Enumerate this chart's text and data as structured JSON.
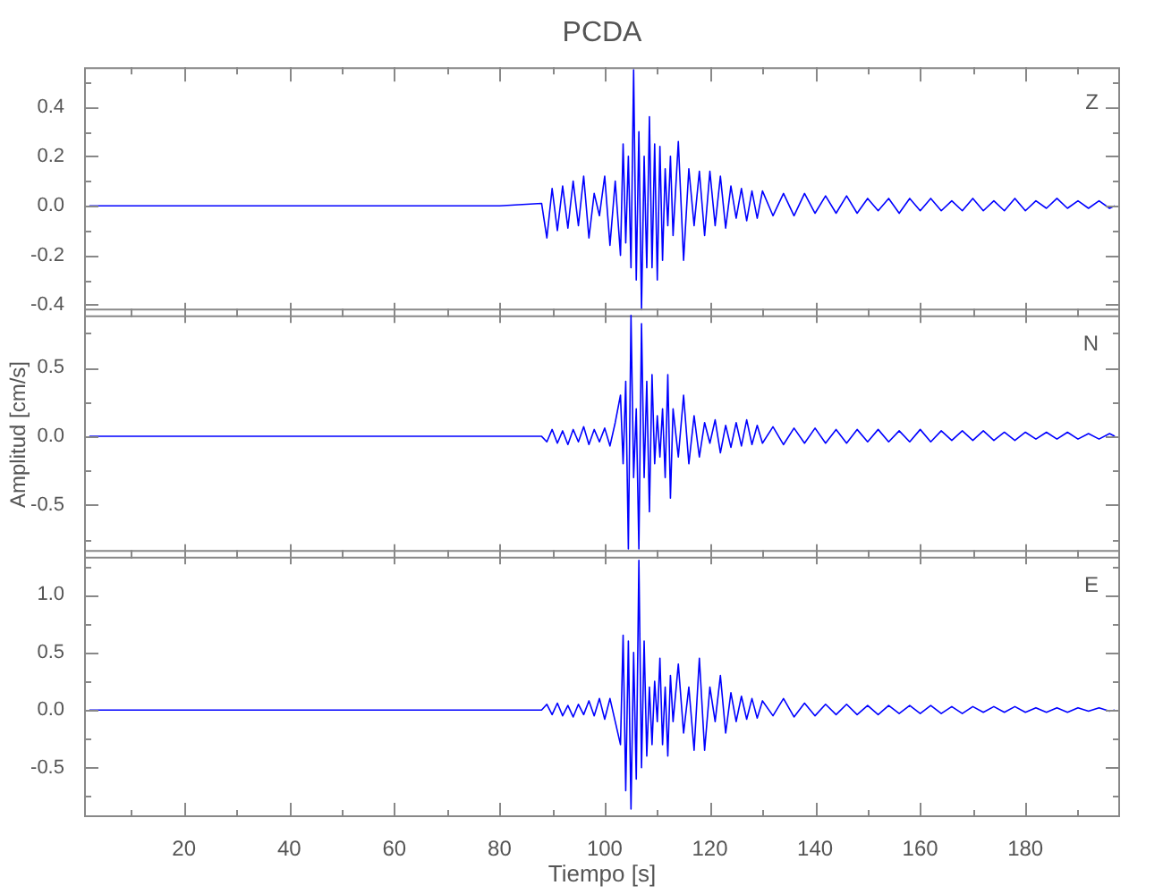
{
  "chart_data": [
    {
      "type": "line",
      "title": "PCDA",
      "annotations": [
        "Z"
      ],
      "tick_labels": "y",
      "color": "#0000ff",
      "marker": "none",
      "line_style": "solid",
      "grid": false,
      "xlim": [
        1,
        198
      ],
      "xticks": [
        {
          "value": 10,
          "label": null
        },
        20,
        {
          "value": 30,
          "label": null
        },
        40,
        {
          "value": 50,
          "label": null
        },
        60,
        {
          "value": 70,
          "label": null
        },
        80,
        {
          "value": 90,
          "label": null
        },
        100,
        {
          "value": 110,
          "label": null
        },
        120,
        {
          "value": 130,
          "label": null
        },
        140,
        {
          "value": 150,
          "label": null
        },
        160,
        {
          "value": 170,
          "label": null
        },
        180,
        {
          "value": 190,
          "label": null
        }
      ],
      "ylim": [
        -0.45,
        0.56
      ],
      "yticks": [
        -0.4,
        {
          "value": -0.3,
          "label": null
        },
        -0.2,
        {
          "value": -0.1,
          "label": null
        },
        {
          "value": 0,
          "label": "0.0"
        },
        {
          "value": 0.1,
          "label": null
        },
        0.2,
        {
          "value": 0.3,
          "label": null
        },
        0.4,
        {
          "value": 0.5,
          "label": null
        }
      ],
      "x": [
        2,
        10,
        20,
        30,
        40,
        50,
        60,
        70,
        80,
        88,
        89,
        90,
        91,
        92,
        93,
        94,
        95,
        96,
        97,
        98,
        99,
        100,
        101,
        102,
        103,
        103.5,
        104,
        104.5,
        105,
        105.5,
        106,
        106.5,
        107,
        107.5,
        108,
        108.5,
        109,
        109.5,
        110,
        110.5,
        111,
        111.5,
        112,
        112.5,
        113,
        114,
        115,
        116,
        117,
        118,
        119,
        120,
        121,
        122,
        123,
        124,
        125,
        126,
        127,
        128,
        129,
        130,
        132,
        134,
        136,
        138,
        140,
        142,
        144,
        146,
        148,
        150,
        152,
        154,
        156,
        158,
        160,
        162,
        164,
        166,
        168,
        170,
        172,
        174,
        176,
        178,
        180,
        182,
        184,
        186,
        188,
        190,
        192,
        194,
        196,
        197
      ],
      "values": [
        0,
        0,
        0,
        0,
        0,
        0,
        0,
        0,
        0,
        0.01,
        -0.13,
        0.07,
        -0.1,
        0.08,
        -0.09,
        0.1,
        -0.08,
        0.12,
        -0.13,
        0.05,
        -0.04,
        0.12,
        -0.16,
        0.1,
        -0.2,
        0.25,
        -0.15,
        0.2,
        -0.25,
        0.55,
        -0.3,
        0.3,
        -0.42,
        0.2,
        -0.25,
        0.36,
        -0.25,
        0.25,
        -0.3,
        0.24,
        -0.22,
        0.15,
        -0.08,
        0.2,
        -0.12,
        0.26,
        -0.22,
        0.15,
        -0.08,
        0.14,
        -0.12,
        0.14,
        -0.08,
        0.12,
        -0.09,
        0.08,
        -0.05,
        0.07,
        -0.06,
        0.06,
        -0.05,
        0.06,
        -0.04,
        0.05,
        -0.04,
        0.05,
        -0.03,
        0.04,
        -0.03,
        0.04,
        -0.03,
        0.03,
        -0.02,
        0.03,
        -0.03,
        0.03,
        -0.02,
        0.03,
        -0.02,
        0.02,
        -0.02,
        0.03,
        -0.02,
        0.02,
        -0.02,
        0.03,
        -0.02,
        0.02,
        -0.01,
        0.03,
        -0.01,
        0.02,
        -0.01,
        0.02,
        -0.01,
        0
      ]
    },
    {
      "type": "line",
      "ylabel": "Amplitud [cm/s]",
      "annotations": [
        "N"
      ],
      "tick_labels": "y",
      "color": "#0000ff",
      "marker": "none",
      "line_style": "solid",
      "grid": false,
      "xlim": [
        1,
        198
      ],
      "xticks": [
        {
          "value": 10,
          "label": null
        },
        20,
        {
          "value": 30,
          "label": null
        },
        40,
        {
          "value": 50,
          "label": null
        },
        60,
        {
          "value": 70,
          "label": null
        },
        80,
        {
          "value": 90,
          "label": null
        },
        100,
        {
          "value": 110,
          "label": null
        },
        120,
        {
          "value": 130,
          "label": null
        },
        140,
        {
          "value": 150,
          "label": null
        },
        160,
        {
          "value": 170,
          "label": null
        },
        180,
        {
          "value": 190,
          "label": null
        }
      ],
      "ylim": [
        -0.89,
        0.93
      ],
      "yticks": [
        {
          "value": -0.75,
          "label": null
        },
        -0.5,
        {
          "value": -0.25,
          "label": null
        },
        {
          "value": 0,
          "label": "0.0"
        },
        {
          "value": 0.25,
          "label": null
        },
        0.5,
        {
          "value": 0.75,
          "label": null
        }
      ],
      "x": [
        2,
        10,
        20,
        30,
        40,
        50,
        60,
        70,
        80,
        88,
        89,
        90,
        91,
        92,
        93,
        94,
        95,
        96,
        97,
        98,
        99,
        100,
        101,
        102,
        103,
        103.5,
        104,
        104.5,
        105,
        105.5,
        106,
        106.5,
        107,
        107.5,
        108,
        108.5,
        109,
        109.5,
        110,
        110.5,
        111,
        111.5,
        112,
        112.5,
        113,
        114,
        115,
        116,
        117,
        118,
        119,
        120,
        121,
        122,
        123,
        124,
        125,
        126,
        127,
        128,
        129,
        130,
        132,
        134,
        136,
        138,
        140,
        142,
        144,
        146,
        148,
        150,
        152,
        154,
        156,
        158,
        160,
        162,
        164,
        166,
        168,
        170,
        172,
        174,
        176,
        178,
        180,
        182,
        184,
        186,
        188,
        190,
        192,
        194,
        196,
        197
      ],
      "values": [
        0,
        0,
        0,
        0,
        0,
        0,
        0,
        0,
        0,
        0,
        -0.04,
        0.05,
        -0.05,
        0.04,
        -0.06,
        0.05,
        -0.04,
        0.07,
        -0.06,
        0.05,
        -0.04,
        0.06,
        -0.07,
        0.1,
        0.3,
        -0.2,
        0.4,
        -0.82,
        0.88,
        -0.3,
        0.2,
        -0.82,
        0.82,
        -0.3,
        0.4,
        -0.55,
        0.45,
        -0.2,
        0.15,
        -0.15,
        0.2,
        -0.3,
        0.45,
        -0.45,
        0.2,
        -0.15,
        0.3,
        -0.2,
        0.15,
        -0.15,
        0.1,
        -0.05,
        0.12,
        -0.12,
        0.08,
        -0.08,
        0.1,
        -0.07,
        0.12,
        -0.06,
        0.08,
        -0.05,
        0.07,
        -0.06,
        0.06,
        -0.05,
        0.06,
        -0.05,
        0.05,
        -0.05,
        0.05,
        -0.04,
        0.05,
        -0.04,
        0.04,
        -0.04,
        0.05,
        -0.04,
        0.04,
        -0.03,
        0.04,
        -0.03,
        0.04,
        -0.03,
        0.03,
        -0.03,
        0.03,
        -0.02,
        0.03,
        -0.02,
        0.03,
        -0.02,
        0.02,
        -0.02,
        0.02,
        0
      ]
    },
    {
      "type": "line",
      "xlabel": "Tiempo [s]",
      "annotations": [
        "E"
      ],
      "color": "#0000ff",
      "marker": "none",
      "line_style": "solid",
      "grid": false,
      "xlim": [
        1,
        198
      ],
      "xticks": [
        {
          "value": 10,
          "label": null
        },
        20,
        {
          "value": 30,
          "label": null
        },
        40,
        {
          "value": 50,
          "label": null
        },
        60,
        {
          "value": 70,
          "label": null
        },
        80,
        {
          "value": 90,
          "label": null
        },
        100,
        {
          "value": 110,
          "label": null
        },
        120,
        {
          "value": 130,
          "label": null
        },
        140,
        {
          "value": 150,
          "label": null
        },
        160,
        {
          "value": 170,
          "label": null
        },
        180,
        {
          "value": 190,
          "label": null
        }
      ],
      "ylim": [
        -0.93,
        1.39
      ],
      "yticks": [
        {
          "value": -0.75,
          "label": null
        },
        -0.5,
        {
          "value": -0.25,
          "label": null
        },
        {
          "value": 0,
          "label": "0.0"
        },
        {
          "value": 0.25,
          "label": null
        },
        0.5,
        {
          "value": 0.75,
          "label": null
        },
        {
          "value": 1,
          "label": "1.0"
        },
        {
          "value": 1.25,
          "label": null
        }
      ],
      "x": [
        2,
        10,
        20,
        30,
        40,
        50,
        60,
        70,
        80,
        88,
        89,
        90,
        91,
        92,
        93,
        94,
        95,
        96,
        97,
        98,
        99,
        100,
        101,
        102,
        103,
        103.5,
        104,
        104.5,
        105,
        105.5,
        106,
        106.5,
        107,
        107.5,
        108,
        108.5,
        109,
        109.5,
        110,
        110.5,
        111,
        111.5,
        112,
        112.5,
        113,
        114,
        115,
        116,
        117,
        118,
        119,
        120,
        121,
        122,
        123,
        124,
        125,
        126,
        127,
        128,
        129,
        130,
        132,
        134,
        136,
        138,
        140,
        142,
        144,
        146,
        148,
        150,
        152,
        154,
        156,
        158,
        160,
        162,
        164,
        166,
        168,
        170,
        172,
        174,
        176,
        178,
        180,
        182,
        184,
        186,
        188,
        190,
        192,
        194,
        196,
        197
      ],
      "values": [
        0,
        0,
        0,
        0,
        0,
        0,
        0,
        0,
        0,
        0,
        0.05,
        -0.04,
        0.06,
        -0.05,
        0.04,
        -0.06,
        0.05,
        -0.04,
        0.08,
        -0.05,
        0.1,
        -0.08,
        0.1,
        -0.1,
        -0.3,
        0.65,
        -0.7,
        0.6,
        -0.86,
        0.5,
        -0.6,
        1.3,
        -0.5,
        0.6,
        -0.4,
        0.2,
        -0.3,
        0.25,
        -0.1,
        0.45,
        -0.3,
        0.2,
        -0.4,
        0.3,
        -0.1,
        0.4,
        -0.2,
        0.2,
        -0.35,
        0.45,
        -0.35,
        0.2,
        -0.1,
        0.3,
        -0.2,
        0.15,
        -0.1,
        0.12,
        -0.08,
        0.1,
        -0.07,
        0.08,
        -0.05,
        0.1,
        -0.06,
        0.06,
        -0.05,
        0.05,
        -0.04,
        0.05,
        -0.04,
        0.04,
        -0.04,
        0.04,
        -0.03,
        0.04,
        -0.03,
        0.04,
        -0.03,
        0.03,
        -0.03,
        0.03,
        -0.02,
        0.03,
        -0.02,
        0.03,
        -0.02,
        0.02,
        -0.02,
        0.02,
        -0.02,
        0.02,
        -0.01,
        0.02,
        -0.01,
        0
      ]
    }
  ]
}
